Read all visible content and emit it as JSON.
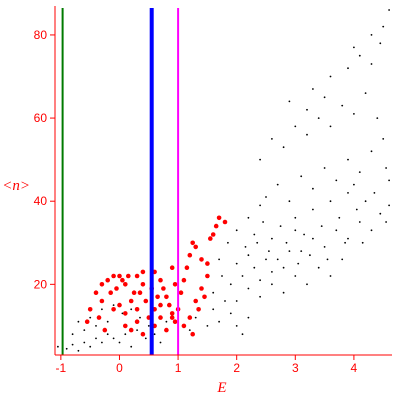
{
  "chart_data": {
    "type": "scatter",
    "title": "",
    "xlabel": "E",
    "ylabel": "<n>",
    "xlim": [
      -1.1,
      4.65
    ],
    "ylim": [
      3,
      86
    ],
    "x_ticks": [
      -1,
      0,
      1,
      2,
      3,
      4
    ],
    "y_ticks": [
      20,
      40,
      60,
      80
    ],
    "grid": false,
    "colors": {
      "axis": "#ff0000",
      "black_points": "#000000",
      "red_points": "#ff0000",
      "line_green": "#007a00",
      "line_blue": "#0000ff",
      "line_magenta": "#ff00ff"
    },
    "vertical_lines": [
      {
        "x": -0.97,
        "color": "#007a00",
        "width": "thin"
      },
      {
        "x": 0.55,
        "color": "#0000ff",
        "width": "thick"
      },
      {
        "x": 1.0,
        "color": "#ff00ff",
        "width": "thin"
      }
    ],
    "series": [
      {
        "color": "#000000",
        "marker": "small-dot",
        "points": [
          [
            -1.05,
            5
          ],
          [
            -0.9,
            4.5
          ],
          [
            -0.8,
            5.5
          ],
          [
            -0.7,
            4
          ],
          [
            -0.6,
            6
          ],
          [
            -0.5,
            5
          ],
          [
            -0.4,
            7
          ],
          [
            -0.3,
            6
          ],
          [
            -0.2,
            8
          ],
          [
            -0.1,
            7
          ],
          [
            -0.8,
            8
          ],
          [
            -0.6,
            9
          ],
          [
            -0.4,
            10
          ],
          [
            -0.2,
            11
          ],
          [
            0.0,
            6
          ],
          [
            0.1,
            8
          ],
          [
            0.2,
            5
          ],
          [
            0.3,
            9
          ],
          [
            0.45,
            7
          ],
          [
            0.5,
            10
          ],
          [
            -0.7,
            11
          ],
          [
            -0.5,
            12
          ],
          [
            -0.3,
            14
          ],
          [
            -0.1,
            15
          ],
          [
            0.05,
            13
          ],
          [
            0.2,
            14
          ],
          [
            0.35,
            12
          ],
          [
            0.6,
            8
          ],
          [
            0.7,
            6
          ],
          [
            0.8,
            11
          ],
          [
            1.2,
            9
          ],
          [
            1.3,
            12
          ],
          [
            1.5,
            10
          ],
          [
            1.6,
            14
          ],
          [
            1.7,
            11
          ],
          [
            1.8,
            16
          ],
          [
            1.9,
            13
          ],
          [
            2.0,
            10
          ],
          [
            2.1,
            8
          ],
          [
            2.2,
            12
          ],
          [
            1.6,
            18
          ],
          [
            1.75,
            22
          ],
          [
            1.9,
            20
          ],
          [
            2.0,
            25
          ],
          [
            2.1,
            22
          ],
          [
            2.2,
            27
          ],
          [
            2.3,
            24
          ],
          [
            2.4,
            21
          ],
          [
            2.5,
            26
          ],
          [
            2.6,
            23
          ],
          [
            1.7,
            26
          ],
          [
            1.85,
            30
          ],
          [
            2.0,
            33
          ],
          [
            2.15,
            29
          ],
          [
            2.3,
            32
          ],
          [
            2.45,
            35
          ],
          [
            2.6,
            31
          ],
          [
            2.75,
            34
          ],
          [
            2.9,
            28
          ],
          [
            3.0,
            33
          ],
          [
            2.0,
            16
          ],
          [
            2.2,
            19
          ],
          [
            2.4,
            17
          ],
          [
            2.6,
            20
          ],
          [
            2.8,
            18
          ],
          [
            3.0,
            22
          ],
          [
            3.2,
            20
          ],
          [
            3.4,
            24
          ],
          [
            3.6,
            22
          ],
          [
            3.8,
            26
          ],
          [
            2.7,
            26
          ],
          [
            2.85,
            30
          ],
          [
            3.0,
            36
          ],
          [
            3.15,
            32
          ],
          [
            3.3,
            38
          ],
          [
            3.45,
            34
          ],
          [
            3.6,
            40
          ],
          [
            3.75,
            36
          ],
          [
            3.9,
            42
          ],
          [
            4.05,
            38
          ],
          [
            3.1,
            28
          ],
          [
            3.3,
            31
          ],
          [
            3.5,
            29
          ],
          [
            3.7,
            33
          ],
          [
            3.9,
            31
          ],
          [
            4.1,
            35
          ],
          [
            4.3,
            33
          ],
          [
            4.45,
            37
          ],
          [
            4.55,
            35
          ],
          [
            4.6,
            39
          ],
          [
            2.5,
            41
          ],
          [
            2.7,
            44
          ],
          [
            2.9,
            40
          ],
          [
            3.1,
            46
          ],
          [
            3.3,
            43
          ],
          [
            3.5,
            48
          ],
          [
            3.7,
            45
          ],
          [
            3.9,
            50
          ],
          [
            4.1,
            47
          ],
          [
            4.3,
            52
          ],
          [
            2.4,
            50
          ],
          [
            2.6,
            55
          ],
          [
            2.8,
            53
          ],
          [
            3.0,
            58
          ],
          [
            3.2,
            56
          ],
          [
            3.4,
            60
          ],
          [
            3.6,
            58
          ],
          [
            3.8,
            63
          ],
          [
            4.0,
            61
          ],
          [
            4.2,
            66
          ],
          [
            3.3,
            67
          ],
          [
            3.6,
            70
          ],
          [
            3.9,
            72
          ],
          [
            4.1,
            75
          ],
          [
            4.3,
            73
          ],
          [
            4.45,
            78
          ],
          [
            4.5,
            82
          ],
          [
            4.6,
            86
          ],
          [
            4.3,
            80
          ],
          [
            4.0,
            77
          ],
          [
            2.9,
            64
          ],
          [
            3.2,
            62
          ],
          [
            3.5,
            65
          ],
          [
            4.4,
            60
          ],
          [
            4.5,
            55
          ],
          [
            4.55,
            48
          ],
          [
            4.6,
            45
          ],
          [
            4.35,
            42
          ],
          [
            4.2,
            40
          ],
          [
            4.0,
            44
          ],
          [
            2.2,
            36
          ],
          [
            2.4,
            39
          ],
          [
            2.35,
            30
          ],
          [
            2.55,
            28
          ],
          [
            2.8,
            24
          ],
          [
            3.05,
            25
          ],
          [
            3.25,
            27
          ],
          [
            3.55,
            26
          ],
          [
            3.85,
            30
          ],
          [
            4.15,
            30
          ]
        ]
      },
      {
        "color": "#ff0000",
        "marker": "large-dot",
        "points": [
          [
            -0.4,
            18
          ],
          [
            -0.3,
            20
          ],
          [
            -0.2,
            21
          ],
          [
            -0.1,
            22
          ],
          [
            0.0,
            22
          ],
          [
            0.05,
            21
          ],
          [
            0.1,
            20
          ],
          [
            -0.05,
            19
          ],
          [
            0.15,
            22
          ],
          [
            -0.15,
            18
          ],
          [
            -0.3,
            16
          ],
          [
            -0.1,
            14
          ],
          [
            0.0,
            15
          ],
          [
            0.1,
            13
          ],
          [
            0.2,
            16
          ],
          [
            0.3,
            14
          ],
          [
            0.35,
            18
          ],
          [
            0.4,
            20
          ],
          [
            0.45,
            16
          ],
          [
            0.5,
            12
          ],
          [
            0.3,
            22
          ],
          [
            0.4,
            23
          ],
          [
            0.6,
            23
          ],
          [
            0.7,
            21
          ],
          [
            0.75,
            19
          ],
          [
            0.8,
            17
          ],
          [
            0.85,
            15
          ],
          [
            0.9,
            13
          ],
          [
            0.95,
            11
          ],
          [
            0.6,
            14
          ],
          [
            0.1,
            10
          ],
          [
            0.2,
            9
          ],
          [
            0.3,
            11
          ],
          [
            0.4,
            8
          ],
          [
            0.6,
            10
          ],
          [
            0.7,
            12
          ],
          [
            0.8,
            9
          ],
          [
            0.9,
            12
          ],
          [
            1.0,
            14
          ],
          [
            1.1,
            10
          ],
          [
            1.05,
            18
          ],
          [
            1.1,
            21
          ],
          [
            1.15,
            24
          ],
          [
            1.2,
            27
          ],
          [
            1.25,
            30
          ],
          [
            1.3,
            29
          ],
          [
            1.4,
            26
          ],
          [
            1.5,
            25
          ],
          [
            1.55,
            31
          ],
          [
            1.6,
            32
          ],
          [
            1.3,
            16
          ],
          [
            1.35,
            14
          ],
          [
            1.4,
            19
          ],
          [
            1.45,
            17
          ],
          [
            1.5,
            22
          ],
          [
            1.65,
            34
          ],
          [
            1.7,
            36
          ],
          [
            1.8,
            35
          ],
          [
            0.9,
            24
          ],
          [
            0.95,
            20
          ],
          [
            -0.5,
            14
          ],
          [
            -0.55,
            11
          ],
          [
            -0.35,
            12
          ],
          [
            -0.25,
            9
          ],
          [
            0.25,
            18
          ],
          [
            0.55,
            19
          ],
          [
            0.65,
            17
          ],
          [
            0.7,
            15
          ],
          [
            1.2,
            12
          ],
          [
            1.25,
            8
          ]
        ]
      }
    ]
  }
}
